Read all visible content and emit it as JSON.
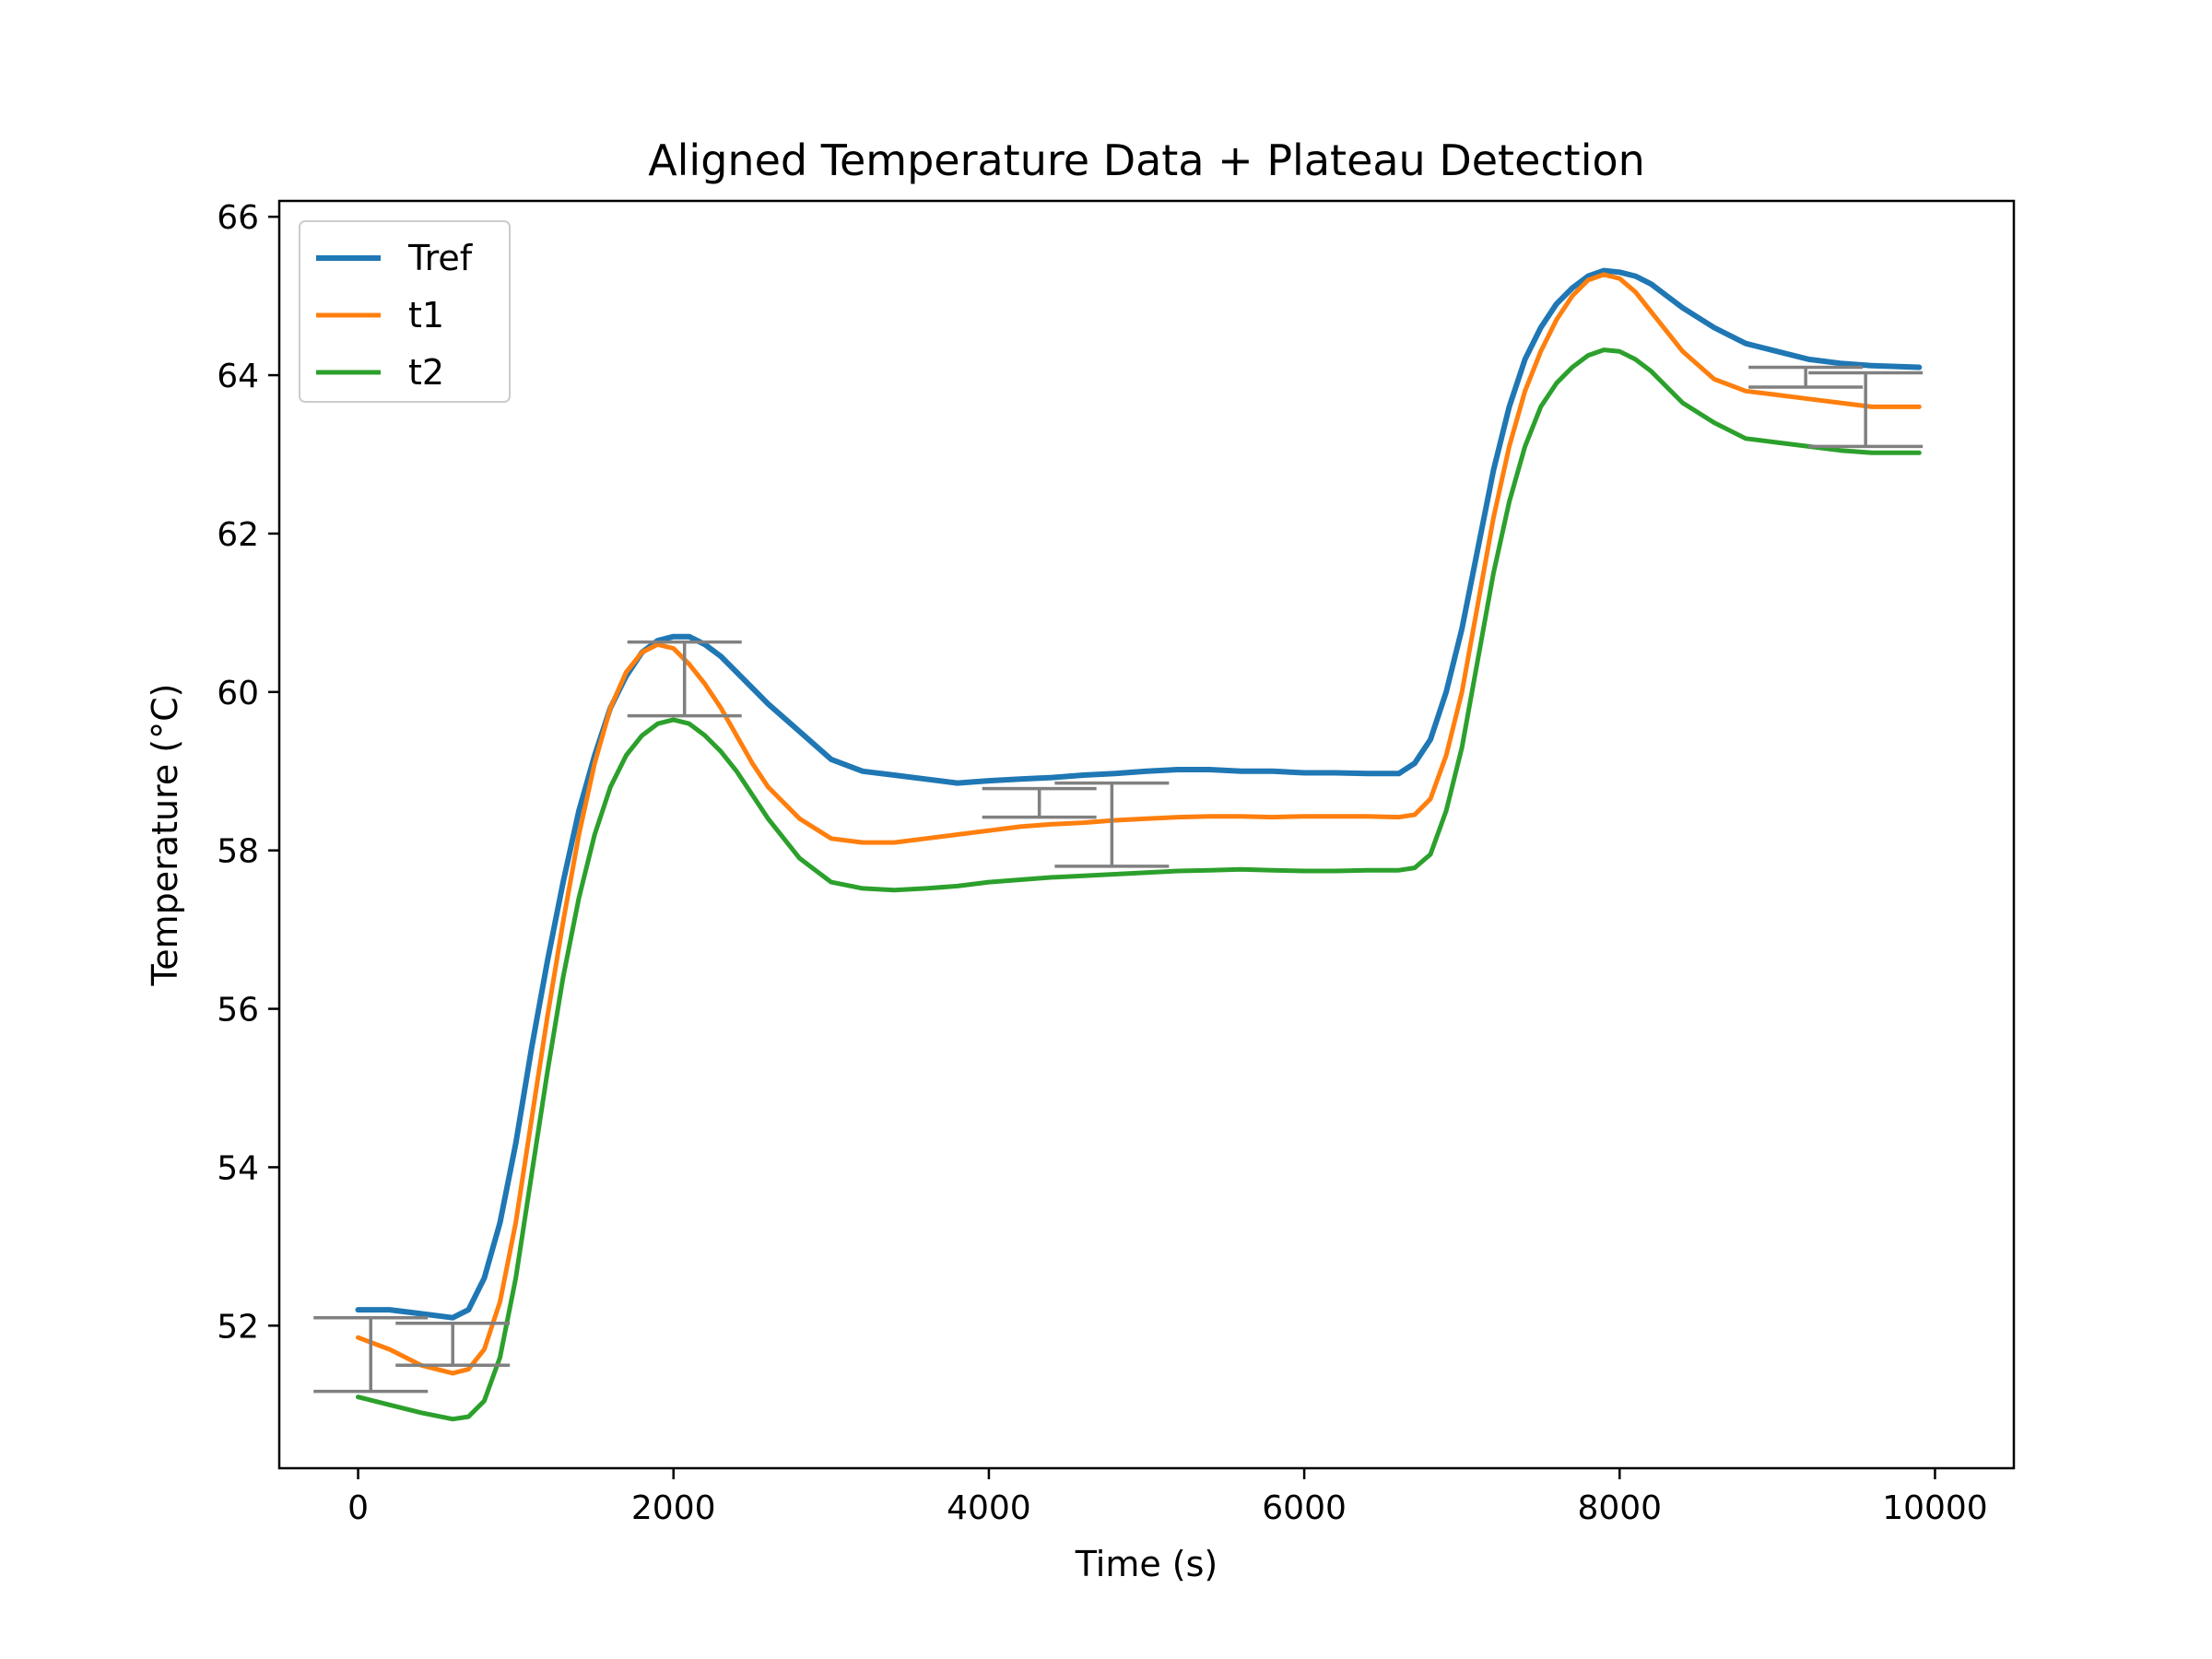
{
  "chart_data": {
    "type": "line",
    "title": "Aligned Temperature Data + Plateau Detection",
    "xlabel": "Time (s)",
    "ylabel": "Temperature (°C)",
    "xlim": [
      -500,
      10500
    ],
    "ylim": [
      50.2,
      66.2
    ],
    "xticks": [
      0,
      2000,
      4000,
      6000,
      8000,
      10000
    ],
    "yticks": [
      52,
      54,
      56,
      58,
      60,
      62,
      64,
      66
    ],
    "grid": false,
    "legend_position": "top-left",
    "series": [
      {
        "name": "Tref",
        "color": "#1f77b4",
        "x": [
          0,
          200,
          400,
          600,
          700,
          800,
          900,
          1000,
          1100,
          1200,
          1300,
          1400,
          1500,
          1600,
          1700,
          1800,
          1900,
          2000,
          2100,
          2200,
          2300,
          2400,
          2500,
          2600,
          2800,
          3000,
          3200,
          3400,
          3600,
          3800,
          4000,
          4200,
          4400,
          4600,
          4800,
          5000,
          5200,
          5400,
          5600,
          5800,
          6000,
          6200,
          6400,
          6600,
          6700,
          6800,
          6900,
          7000,
          7100,
          7200,
          7300,
          7400,
          7500,
          7600,
          7700,
          7800,
          7900,
          8000,
          8100,
          8200,
          8300,
          8400,
          8600,
          8800,
          9000,
          9200,
          9400,
          9600,
          9900
        ],
        "y": [
          52.2,
          52.2,
          52.15,
          52.1,
          52.2,
          52.6,
          53.3,
          54.3,
          55.5,
          56.6,
          57.6,
          58.5,
          59.2,
          59.8,
          60.2,
          60.5,
          60.65,
          60.7,
          60.7,
          60.6,
          60.45,
          60.25,
          60.05,
          59.85,
          59.5,
          59.15,
          59.0,
          58.95,
          58.9,
          58.85,
          58.88,
          58.9,
          58.92,
          58.95,
          58.97,
          59.0,
          59.02,
          59.02,
          59.0,
          59.0,
          58.98,
          58.98,
          58.97,
          58.97,
          59.1,
          59.4,
          60.0,
          60.8,
          61.8,
          62.8,
          63.6,
          64.2,
          64.6,
          64.9,
          65.1,
          65.25,
          65.32,
          65.3,
          65.25,
          65.15,
          65.0,
          64.85,
          64.6,
          64.4,
          64.3,
          64.2,
          64.15,
          64.12,
          64.1
        ]
      },
      {
        "name": "t1",
        "color": "#ff7f0e",
        "x": [
          0,
          200,
          400,
          600,
          700,
          800,
          900,
          1000,
          1100,
          1200,
          1300,
          1400,
          1500,
          1600,
          1700,
          1800,
          1900,
          2000,
          2100,
          2200,
          2300,
          2400,
          2500,
          2600,
          2800,
          3000,
          3200,
          3400,
          3600,
          3800,
          4000,
          4200,
          4400,
          4600,
          4800,
          5000,
          5200,
          5400,
          5600,
          5800,
          6000,
          6200,
          6400,
          6600,
          6700,
          6800,
          6900,
          7000,
          7100,
          7200,
          7300,
          7400,
          7500,
          7600,
          7700,
          7800,
          7900,
          8000,
          8100,
          8200,
          8300,
          8400,
          8600,
          8800,
          9000,
          9200,
          9400,
          9600,
          9900
        ],
        "y": [
          51.85,
          51.7,
          51.5,
          51.4,
          51.45,
          51.7,
          52.3,
          53.3,
          54.6,
          55.9,
          57.1,
          58.2,
          59.1,
          59.8,
          60.25,
          60.5,
          60.6,
          60.55,
          60.35,
          60.1,
          59.8,
          59.45,
          59.1,
          58.8,
          58.4,
          58.15,
          58.1,
          58.1,
          58.15,
          58.2,
          58.25,
          58.3,
          58.33,
          58.35,
          58.38,
          58.4,
          58.42,
          58.43,
          58.43,
          58.42,
          58.43,
          58.43,
          58.43,
          58.42,
          58.45,
          58.65,
          59.2,
          60.0,
          61.1,
          62.2,
          63.1,
          63.8,
          64.3,
          64.7,
          65.0,
          65.2,
          65.27,
          65.22,
          65.05,
          64.8,
          64.55,
          64.3,
          63.95,
          63.8,
          63.75,
          63.7,
          63.65,
          63.6,
          63.6
        ]
      },
      {
        "name": "t2",
        "color": "#2ca02c",
        "x": [
          0,
          200,
          400,
          600,
          700,
          800,
          900,
          1000,
          1100,
          1200,
          1300,
          1400,
          1500,
          1600,
          1700,
          1800,
          1900,
          2000,
          2100,
          2200,
          2300,
          2400,
          2500,
          2600,
          2800,
          3000,
          3200,
          3400,
          3600,
          3800,
          4000,
          4200,
          4400,
          4600,
          4800,
          5000,
          5200,
          5400,
          5600,
          5800,
          6000,
          6200,
          6400,
          6600,
          6700,
          6800,
          6900,
          7000,
          7100,
          7200,
          7300,
          7400,
          7500,
          7600,
          7700,
          7800,
          7900,
          8000,
          8100,
          8200,
          8300,
          8400,
          8600,
          8800,
          9000,
          9200,
          9400,
          9600,
          9900
        ],
        "y": [
          51.1,
          51.0,
          50.9,
          50.82,
          50.85,
          51.05,
          51.6,
          52.6,
          53.9,
          55.2,
          56.4,
          57.4,
          58.2,
          58.8,
          59.2,
          59.45,
          59.6,
          59.65,
          59.6,
          59.45,
          59.25,
          59.0,
          58.7,
          58.4,
          57.9,
          57.6,
          57.52,
          57.5,
          57.52,
          57.55,
          57.6,
          57.63,
          57.66,
          57.68,
          57.7,
          57.72,
          57.74,
          57.75,
          57.76,
          57.75,
          57.74,
          57.74,
          57.75,
          57.75,
          57.78,
          57.95,
          58.5,
          59.3,
          60.4,
          61.5,
          62.4,
          63.1,
          63.6,
          63.9,
          64.1,
          64.25,
          64.32,
          64.3,
          64.2,
          64.05,
          63.85,
          63.65,
          63.4,
          63.2,
          63.15,
          63.1,
          63.05,
          63.02,
          63.02
        ]
      }
    ],
    "plateau_markers": [
      {
        "x": 80,
        "y_low": 51.17,
        "y_high": 52.1
      },
      {
        "x": 600,
        "y_low": 51.5,
        "y_high": 52.03
      },
      {
        "x": 2070,
        "y_low": 59.7,
        "y_high": 60.63
      },
      {
        "x": 4320,
        "y_low": 58.42,
        "y_high": 58.78
      },
      {
        "x": 4780,
        "y_low": 57.8,
        "y_high": 58.85
      },
      {
        "x": 9180,
        "y_low": 63.85,
        "y_high": 64.1
      },
      {
        "x": 9560,
        "y_low": 63.1,
        "y_high": 64.03
      }
    ],
    "plateau_marker_color": "#808080"
  }
}
